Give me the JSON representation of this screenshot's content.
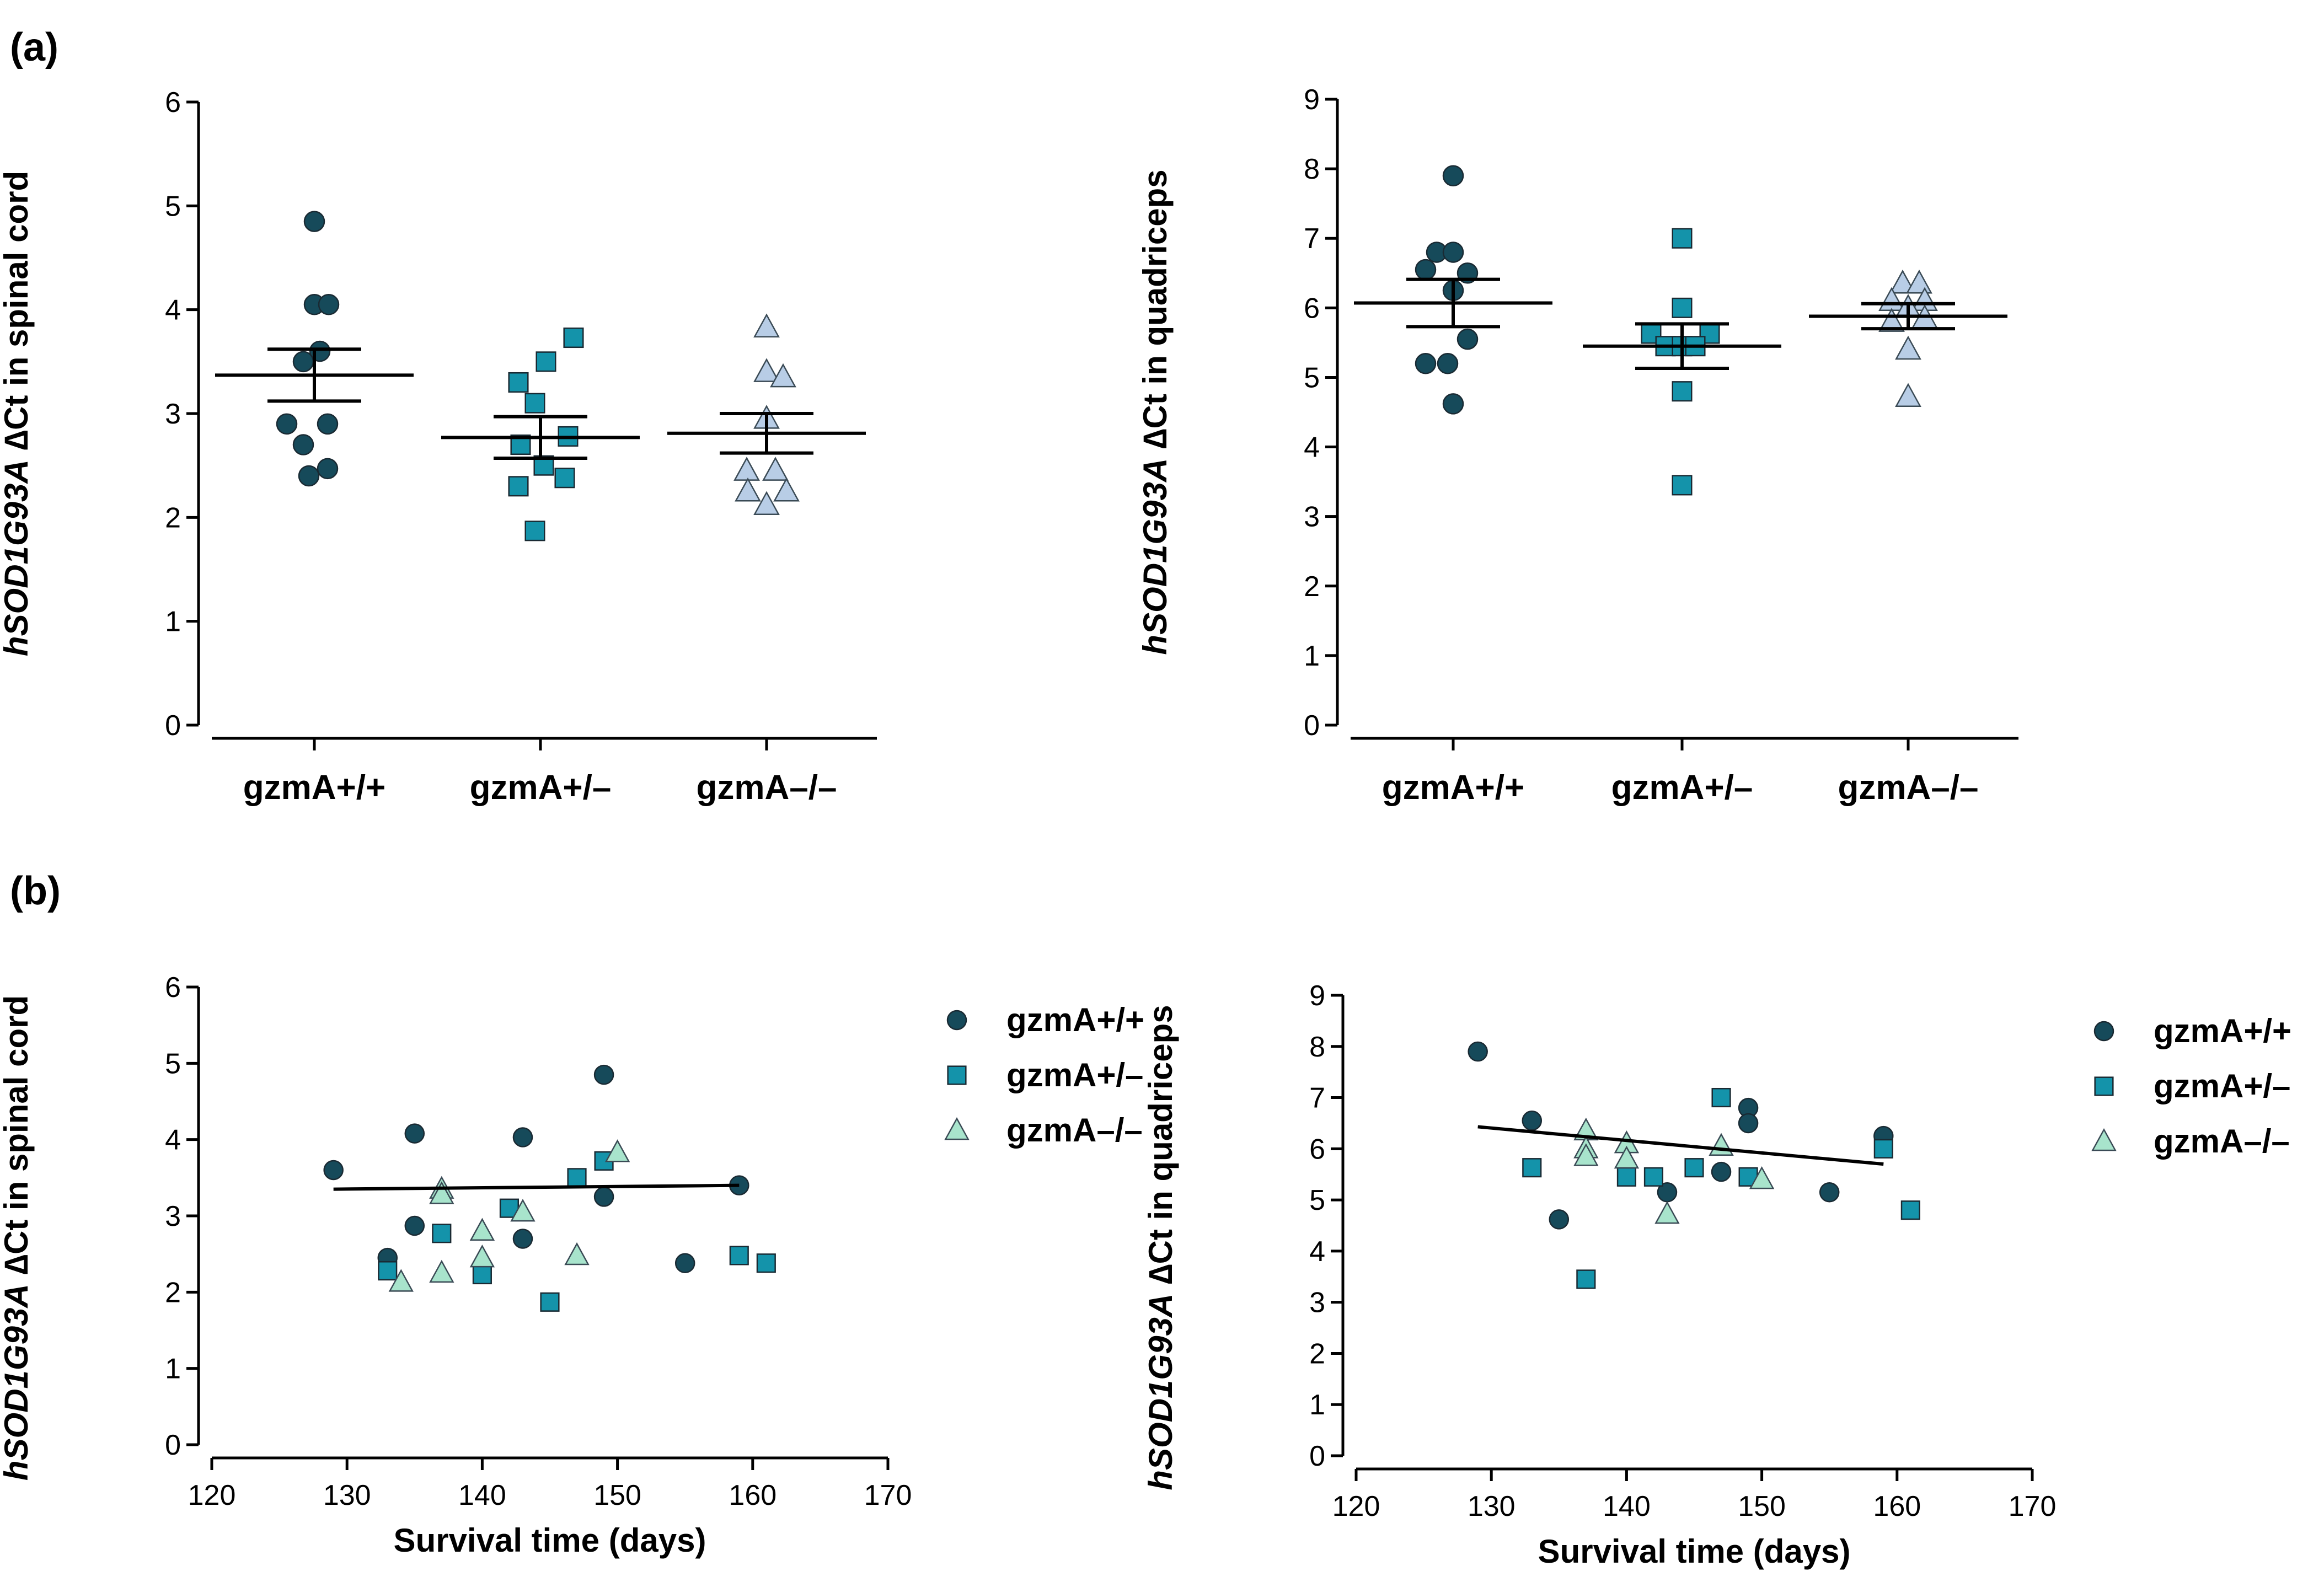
{
  "panel_labels": {
    "a": "(a)",
    "b": "(b)"
  },
  "colors": {
    "circle": "#164a5a",
    "square": "#1493aa",
    "triangle_a": "#b8cde6",
    "triangle_b": "#a8e4cc"
  },
  "y_title_parts": {
    "gene": "hSOD1G93A",
    "delta": "∆",
    "ct": "Ct in"
  },
  "chart_data": [
    {
      "id": "a-spinal",
      "type": "scatter",
      "title": "",
      "ylabel_tissue": "spinal cord",
      "ylim": [
        0,
        6
      ],
      "yticks": [
        0,
        1,
        2,
        3,
        4,
        5,
        6
      ],
      "categories": [
        "gzmA+/+",
        "gzmA+/–",
        "gzmA–/–"
      ],
      "series": [
        {
          "name": "gzmA+/+",
          "marker": "circle",
          "points": [
            [
              -0.25,
              2.9
            ],
            [
              -0.1,
              2.7
            ],
            [
              0.12,
              2.9
            ],
            [
              0.05,
              3.6
            ],
            [
              -0.1,
              3.5
            ],
            [
              0,
              4.05
            ],
            [
              0.13,
              4.05
            ],
            [
              0,
              4.85
            ],
            [
              -0.05,
              2.4
            ],
            [
              0.12,
              2.47
            ]
          ],
          "mean": 3.37,
          "sem": 0.25
        },
        {
          "name": "gzmA+/–",
          "marker": "square",
          "points": [
            [
              -0.2,
              3.3
            ],
            [
              0.05,
              3.5
            ],
            [
              0.3,
              3.73
            ],
            [
              -0.05,
              3.1
            ],
            [
              -0.18,
              2.7
            ],
            [
              0.25,
              2.78
            ],
            [
              -0.2,
              2.3
            ],
            [
              0.22,
              2.38
            ],
            [
              0.03,
              2.5
            ],
            [
              -0.05,
              1.87
            ]
          ],
          "mean": 2.77,
          "sem": 0.2
        },
        {
          "name": "gzmA–/–",
          "marker": "triangle",
          "points": [
            [
              0,
              3.83
            ],
            [
              0,
              3.4
            ],
            [
              0.15,
              3.35
            ],
            [
              0,
              2.95
            ],
            [
              -0.18,
              2.45
            ],
            [
              0.08,
              2.45
            ],
            [
              -0.17,
              2.25
            ],
            [
              0.18,
              2.25
            ],
            [
              0,
              2.12
            ]
          ],
          "mean": 2.81,
          "sem": 0.19
        }
      ]
    },
    {
      "id": "a-quad",
      "type": "scatter",
      "title": "",
      "ylabel_tissue": "quadriceps",
      "ylim": [
        0,
        9
      ],
      "yticks": [
        0,
        1,
        2,
        3,
        4,
        5,
        6,
        7,
        8,
        9
      ],
      "categories": [
        "gzmA+/+",
        "gzmA+/–",
        "gzmA–/–"
      ],
      "series": [
        {
          "name": "gzmA+/+",
          "marker": "circle",
          "points": [
            [
              0,
              7.9
            ],
            [
              -0.15,
              6.8
            ],
            [
              0,
              6.8
            ],
            [
              -0.25,
              6.55
            ],
            [
              0.13,
              6.5
            ],
            [
              0,
              6.25
            ],
            [
              -0.25,
              5.2
            ],
            [
              -0.05,
              5.2
            ],
            [
              0.13,
              5.55
            ],
            [
              0,
              4.62
            ]
          ],
          "mean": 6.07,
          "sem": 0.34
        },
        {
          "name": "gzmA+/–",
          "marker": "square",
          "points": [
            [
              0,
              7.0
            ],
            [
              0,
              6.0
            ],
            [
              -0.28,
              5.63
            ],
            [
              0.25,
              5.63
            ],
            [
              -0.15,
              5.45
            ],
            [
              0,
              5.45
            ],
            [
              0.12,
              5.45
            ],
            [
              0,
              4.8
            ],
            [
              0,
              3.45
            ]
          ],
          "mean": 5.45,
          "sem": 0.32
        },
        {
          "name": "gzmA–/–",
          "marker": "triangle",
          "points": [
            [
              -0.05,
              6.35
            ],
            [
              0.1,
              6.35
            ],
            [
              -0.15,
              6.1
            ],
            [
              0.15,
              6.1
            ],
            [
              0,
              6.0
            ],
            [
              -0.15,
              5.8
            ],
            [
              0.15,
              5.85
            ],
            [
              0,
              5.4
            ],
            [
              0,
              4.72
            ]
          ],
          "mean": 5.88,
          "sem": 0.18
        }
      ]
    },
    {
      "id": "b-spinal",
      "type": "scatter",
      "title": "",
      "ylabel_tissue": "spinal cord",
      "xlabel": "Survival time (days)",
      "xlim": [
        120,
        170
      ],
      "xticks": [
        120,
        130,
        140,
        150,
        160,
        170
      ],
      "ylim": [
        0,
        6
      ],
      "yticks": [
        0,
        1,
        2,
        3,
        4,
        5,
        6
      ],
      "series": [
        {
          "name": "gzmA+/+",
          "marker": "circle",
          "points": [
            [
              129,
              3.6
            ],
            [
              133,
              2.45
            ],
            [
              135,
              4.08
            ],
            [
              135,
              2.87
            ],
            [
              143,
              4.03
            ],
            [
              143,
              2.7
            ],
            [
              149,
              4.85
            ],
            [
              149,
              3.25
            ],
            [
              155,
              2.38
            ],
            [
              159,
              3.4
            ]
          ]
        },
        {
          "name": "gzmA+/–",
          "marker": "square",
          "points": [
            [
              133,
              2.28
            ],
            [
              137,
              2.77
            ],
            [
              140,
              2.23
            ],
            [
              142,
              3.1
            ],
            [
              145,
              1.87
            ],
            [
              147,
              3.5
            ],
            [
              149,
              3.72
            ],
            [
              159,
              2.48
            ],
            [
              161,
              2.38
            ]
          ]
        },
        {
          "name": "gzmA–/–",
          "marker": "triangle",
          "points": [
            [
              134,
              2.13
            ],
            [
              137,
              3.35
            ],
            [
              137,
              3.28
            ],
            [
              137,
              2.25
            ],
            [
              140,
              2.8
            ],
            [
              140,
              2.45
            ],
            [
              143,
              3.05
            ],
            [
              147,
              2.48
            ],
            [
              150,
              3.83
            ]
          ]
        }
      ],
      "fit": {
        "x": [
          129,
          159
        ],
        "y": [
          3.35,
          3.4
        ]
      },
      "legend": [
        "gzmA+/+",
        "gzmA+/–",
        "gzmA–/–"
      ]
    },
    {
      "id": "b-quad",
      "type": "scatter",
      "title": "",
      "ylabel_tissue": "quadriceps",
      "xlabel": "Survival time (days)",
      "xlim": [
        120,
        170
      ],
      "xticks": [
        120,
        130,
        140,
        150,
        160,
        170
      ],
      "ylim": [
        0,
        9
      ],
      "yticks": [
        0,
        1,
        2,
        3,
        4,
        5,
        6,
        7,
        8,
        9
      ],
      "series": [
        {
          "name": "gzmA+/+",
          "marker": "circle",
          "points": [
            [
              129,
              7.9
            ],
            [
              133,
              6.55
            ],
            [
              135,
              4.62
            ],
            [
              143,
              5.15
            ],
            [
              147,
              5.55
            ],
            [
              149,
              6.8
            ],
            [
              149,
              6.5
            ],
            [
              155,
              5.15
            ],
            [
              159,
              6.25
            ]
          ]
        },
        {
          "name": "gzmA+/–",
          "marker": "square",
          "points": [
            [
              133,
              5.63
            ],
            [
              137,
              3.45
            ],
            [
              140,
              5.45
            ],
            [
              142,
              5.45
            ],
            [
              145,
              5.63
            ],
            [
              147,
              7.0
            ],
            [
              149,
              5.45
            ],
            [
              159,
              6.0
            ],
            [
              161,
              4.8
            ]
          ]
        },
        {
          "name": "gzmA–/–",
          "marker": "triangle",
          "points": [
            [
              137,
              6.35
            ],
            [
              137,
              6.0
            ],
            [
              137,
              5.85
            ],
            [
              140,
              6.1
            ],
            [
              140,
              5.8
            ],
            [
              143,
              4.72
            ],
            [
              147,
              6.05
            ],
            [
              150,
              5.4
            ]
          ]
        }
      ],
      "fit": {
        "x": [
          129,
          159
        ],
        "y": [
          6.43,
          5.7
        ]
      },
      "legend": [
        "gzmA+/+",
        "gzmA+/–",
        "gzmA–/–"
      ]
    }
  ]
}
